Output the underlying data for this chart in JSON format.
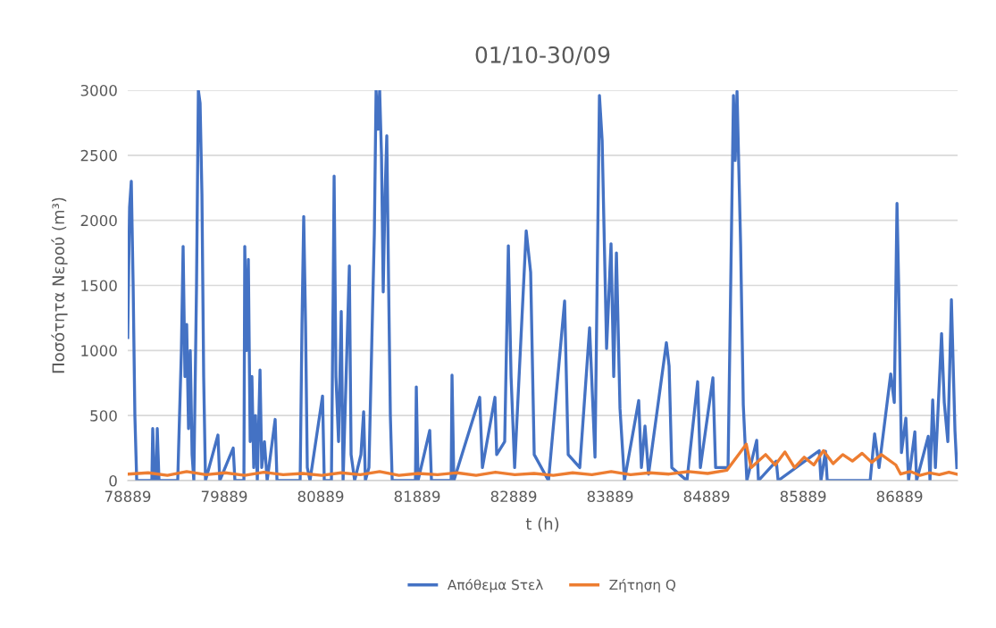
{
  "chart_data": {
    "type": "line",
    "title": "01/10-30/09",
    "xlabel": "t (h)",
    "ylabel": "Ποσότητα Νερού (m³)",
    "xlim": [
      78889,
      87490
    ],
    "xticks": [
      78889,
      79889,
      80889,
      81889,
      82889,
      83889,
      84889,
      85889,
      86889
    ],
    "ylim": [
      0,
      3000
    ],
    "yticks": [
      0,
      500,
      1000,
      1500,
      2000,
      2500,
      3000
    ],
    "grid": "y",
    "legend": "bottom",
    "marker": "none",
    "line_style": "solid",
    "series": [
      {
        "name": "Απόθεμα Sτελ",
        "color": "#4472c4",
        "x": [
          78889,
          78908,
          78926,
          78945,
          78963,
          78982,
          79139,
          79148,
          79167,
          79185,
          79195,
          79213,
          79407,
          79445,
          79463,
          79482,
          79500,
          79519,
          79537,
          79556,
          79574,
          79602,
          79621,
          79639,
          79658,
          79676,
          79695,
          79824,
          79843,
          79982,
          80000,
          80093,
          80102,
          80121,
          80139,
          80158,
          80176,
          80195,
          80213,
          80232,
          80260,
          80278,
          80306,
          80334,
          80417,
          80436,
          80676,
          80695,
          80713,
          80732,
          80750,
          80778,
          80908,
          80926,
          81000,
          81019,
          81028,
          81047,
          81074,
          81102,
          81121,
          81186,
          81204,
          81241,
          81306,
          81334,
          81352,
          81389,
          81426,
          81445,
          81463,
          81482,
          81500,
          81519,
          81537,
          81556,
          81574,
          81593,
          81611,
          81630,
          81871,
          81880,
          81898,
          82019,
          82037,
          82241,
          82250,
          82269,
          82537,
          82565,
          82695,
          82713,
          82796,
          82834,
          82862,
          82899,
          83019,
          83065,
          83102,
          83250,
          83417,
          83454,
          83574,
          83676,
          83732,
          83778,
          83806,
          83852,
          83898,
          83926,
          83954,
          83991,
          84037,
          84185,
          84213,
          84250,
          84287,
          84472,
          84500,
          84528,
          84685,
          84796,
          84824,
          84954,
          84982,
          85111,
          85167,
          85185,
          85204,
          85241,
          85269,
          85306,
          85408,
          85426,
          85611,
          85630,
          86056,
          86074,
          86121,
          86139,
          86584,
          86630,
          86676,
          86797,
          86834,
          86862,
          86880,
          86908,
          86954,
          86982,
          87047,
          87065,
          87186,
          87204,
          87232,
          87260,
          87324,
          87352,
          87389,
          87426,
          87463,
          87482
        ],
        "values": [
          1100,
          2100,
          2300,
          1500,
          500,
          0,
          0,
          400,
          0,
          0,
          400,
          0,
          0,
          1000,
          1800,
          800,
          1200,
          400,
          1000,
          200,
          0,
          1500,
          3000,
          2900,
          2200,
          800,
          0,
          350,
          0,
          250,
          0,
          0,
          1800,
          1000,
          1700,
          300,
          800,
          100,
          500,
          0,
          850,
          100,
          300,
          0,
          470,
          0,
          0,
          1200,
          2030,
          1200,
          100,
          0,
          650,
          0,
          0,
          1500,
          2340,
          800,
          300,
          1300,
          0,
          1650,
          200,
          0,
          200,
          530,
          0,
          100,
          1300,
          1900,
          3000,
          2700,
          3000,
          2500,
          1450,
          2200,
          2650,
          1500,
          500,
          0,
          0,
          720,
          0,
          385,
          0,
          0,
          810,
          0,
          640,
          100,
          640,
          200,
          300,
          1805,
          800,
          100,
          1920,
          1600,
          200,
          0,
          1380,
          200,
          100,
          1175,
          180,
          2960,
          2615,
          1015,
          1820,
          800,
          1750,
          555,
          0,
          615,
          100,
          420,
          50,
          1060,
          880,
          100,
          0,
          760,
          100,
          790,
          100,
          100,
          2960,
          2460,
          2990,
          1820,
          580,
          0,
          310,
          0,
          150,
          0,
          230,
          0,
          225,
          0,
          0,
          360,
          100,
          820,
          600,
          2130,
          1475,
          215,
          480,
          0,
          375,
          0,
          340,
          0,
          620,
          100,
          1130,
          600,
          300,
          1390,
          380,
          100
        ]
      },
      {
        "name": "Ζήτηση Q",
        "color": "#ed7d31",
        "x": [
          78889,
          79100,
          79300,
          79500,
          79700,
          79900,
          80100,
          80300,
          80500,
          80700,
          80900,
          81100,
          81300,
          81500,
          81700,
          81900,
          82100,
          82300,
          82500,
          82700,
          82900,
          83100,
          83300,
          83500,
          83700,
          83900,
          84100,
          84300,
          84500,
          84700,
          84900,
          85100,
          85300,
          85350,
          85500,
          85600,
          85700,
          85800,
          85900,
          86000,
          86100,
          86200,
          86300,
          86400,
          86500,
          86600,
          86700,
          86850,
          86900,
          87000,
          87100,
          87200,
          87300,
          87400,
          87482
        ],
        "values": [
          50,
          60,
          40,
          70,
          45,
          60,
          40,
          65,
          45,
          55,
          40,
          60,
          45,
          70,
          40,
          55,
          45,
          60,
          40,
          65,
          45,
          55,
          40,
          60,
          45,
          70,
          45,
          60,
          50,
          70,
          55,
          80,
          280,
          100,
          200,
          120,
          220,
          100,
          180,
          120,
          230,
          130,
          200,
          150,
          210,
          140,
          200,
          120,
          50,
          70,
          40,
          60,
          45,
          65,
          50
        ]
      }
    ]
  }
}
